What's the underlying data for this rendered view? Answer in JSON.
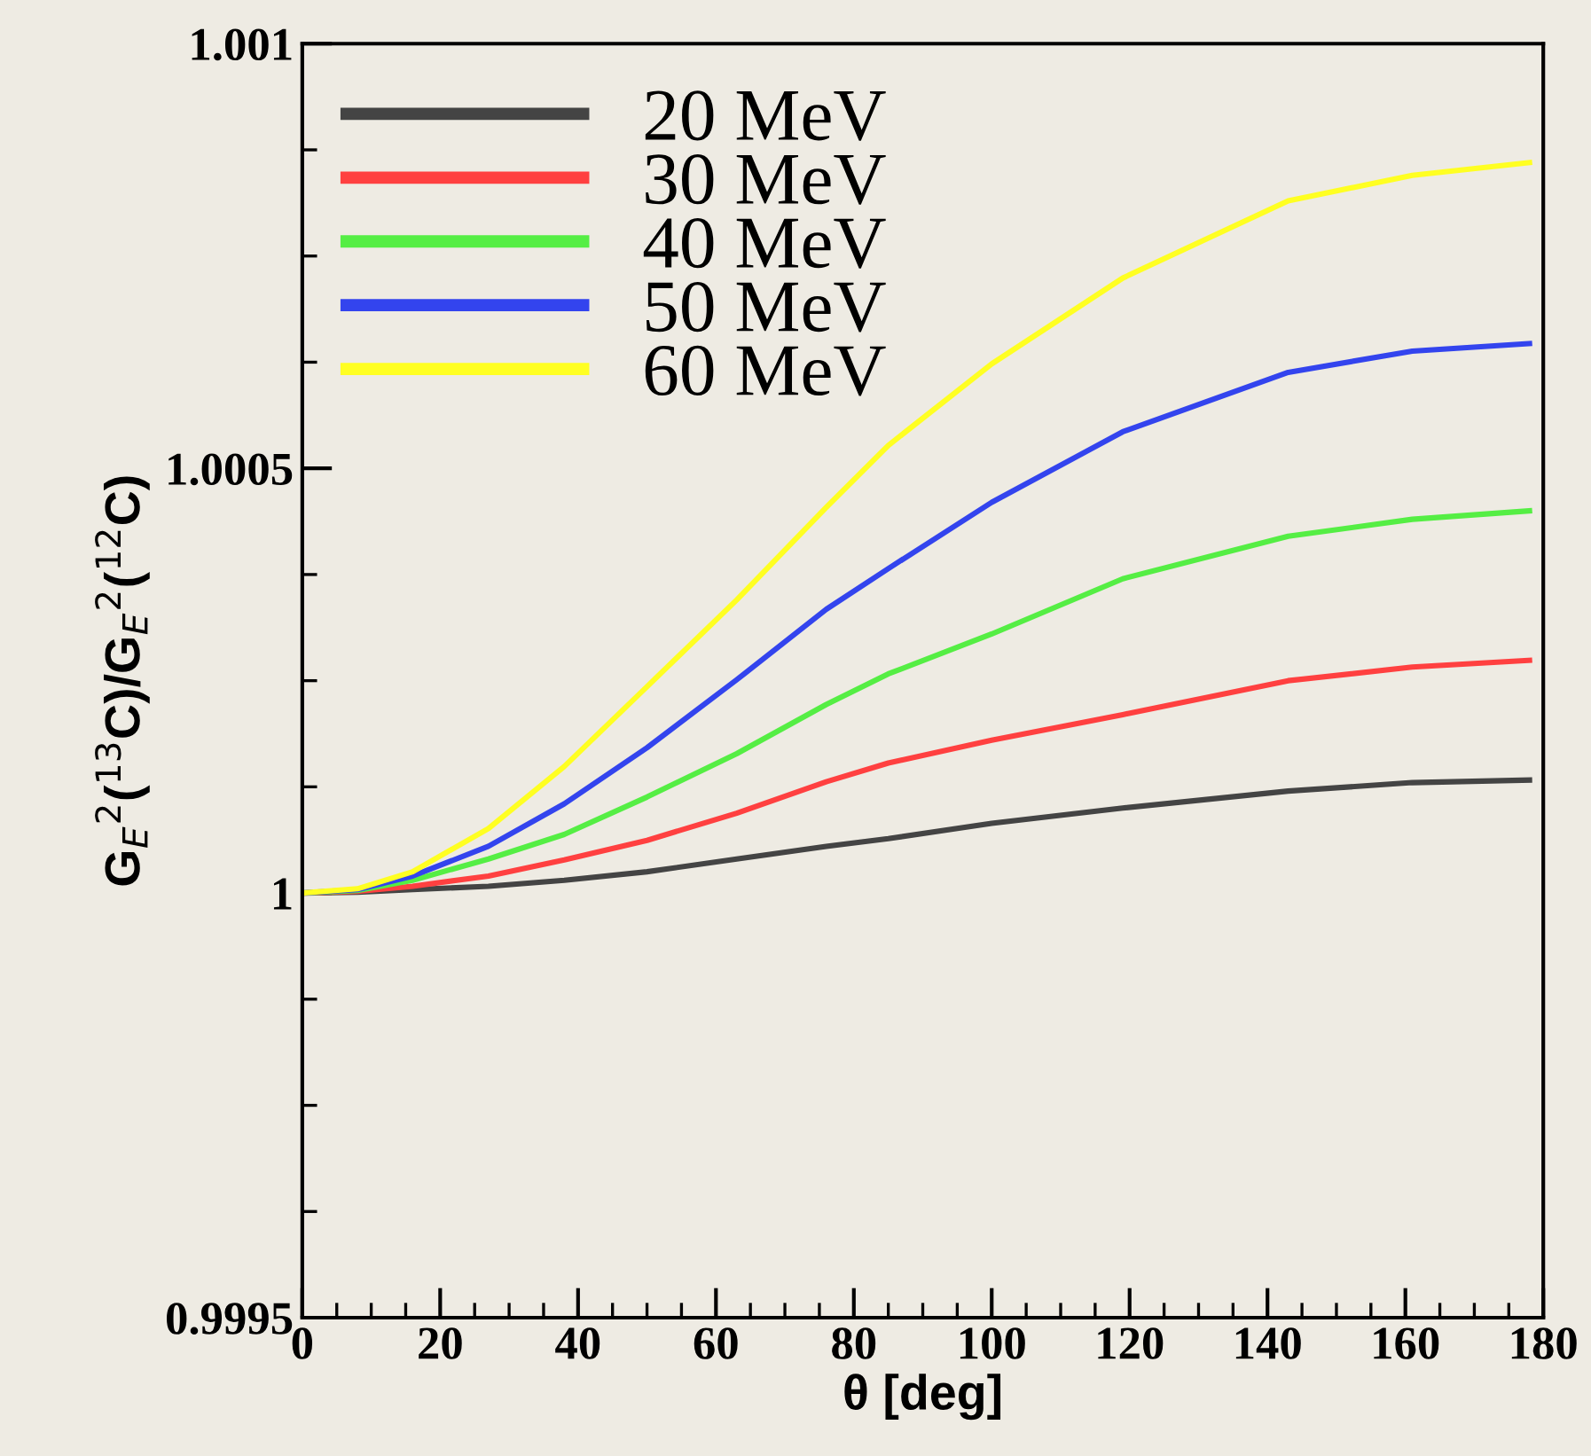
{
  "chart_data": {
    "type": "line",
    "xlabel": "θ [deg]",
    "ylabel": "G$_{E}$$^{2}$($^{13}$C)/G$_{E}$$^{2}$($^{12}$C)",
    "x": [
      0,
      8,
      16,
      27,
      38,
      50,
      63,
      76,
      85,
      100,
      119,
      143,
      161,
      178
    ],
    "xlim": [
      0,
      180
    ],
    "xticks": [
      0,
      20,
      40,
      60,
      80,
      100,
      120,
      140,
      160,
      180
    ],
    "ylim": [
      0.9995,
      1.001
    ],
    "yticks": [
      0.9995,
      1,
      1.0005,
      1.001
    ],
    "legend": "top left",
    "grid": false,
    "marker": "none",
    "line_style": "solid",
    "series": [
      {
        "name": "20 MeV",
        "color": "#444444",
        "values": [
          1,
          1.000001,
          1.000004,
          1.000008,
          1.000015,
          1.000025,
          1.00004,
          1.000055,
          1.000064,
          1.000082,
          1.0001,
          1.00012,
          1.00013,
          1.000133
        ]
      },
      {
        "name": "30 MeV",
        "color": "#ff4040",
        "values": [
          1,
          1.000002,
          1.000008,
          1.00002,
          1.000039,
          1.000062,
          1.000094,
          1.000131,
          1.000153,
          1.00018,
          1.00021,
          1.00025,
          1.000266,
          1.000274
        ]
      },
      {
        "name": "40 MeV",
        "color": "#55ee44",
        "values": [
          1,
          1.000003,
          1.000015,
          1.00004,
          1.000069,
          1.000113,
          1.000164,
          1.000222,
          1.000258,
          1.000305,
          1.00037,
          1.00042,
          1.00044,
          1.00045
        ]
      },
      {
        "name": "50 MeV",
        "color": "#3344ee",
        "values": [
          1,
          1.000004,
          1.00002,
          1.000055,
          1.000105,
          1.000171,
          1.000251,
          1.000334,
          1.000382,
          1.00046,
          1.000543,
          1.000613,
          1.000638,
          1.000647
        ]
      },
      {
        "name": "60 MeV",
        "color": "#ffff22",
        "values": [
          1,
          1.000005,
          1.000025,
          1.000076,
          1.000149,
          1.000243,
          1.000345,
          1.000454,
          1.000527,
          1.000623,
          1.000724,
          1.000815,
          1.000845,
          1.00086
        ]
      }
    ]
  }
}
